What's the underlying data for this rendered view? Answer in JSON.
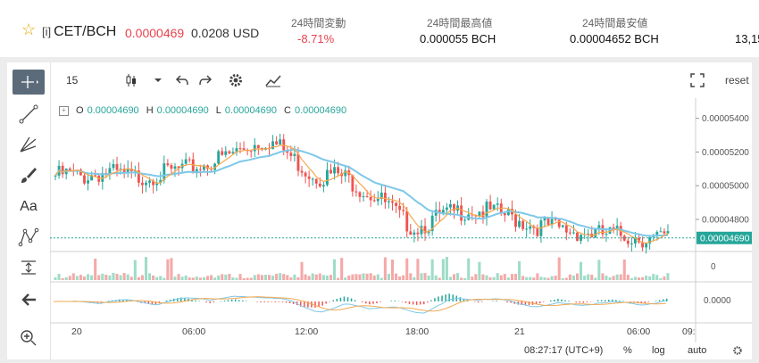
{
  "ticker": {
    "tag": "[i]",
    "pair": "CET/BCH",
    "price": "0.0000469",
    "usd": "0.0208 USD",
    "change_label": "24時間変動",
    "change_value": "-8.71%",
    "high_label": "24時間最高値",
    "high_value": "0.000055 BCH",
    "low_label": "24時間最安値",
    "low_value": "0.00004652 BCH",
    "volume_value": "13,15"
  },
  "toolbar": {
    "interval": "15",
    "reset_label": "reset"
  },
  "ohlc": {
    "o_label": "O",
    "o": "0.00004690",
    "h_label": "H",
    "h": "0.00004690",
    "l_label": "L",
    "l": "0.00004690",
    "c_label": "C",
    "c": "0.00004690"
  },
  "axis": {
    "price_labels": [
      "0.00005400",
      "0.00005200",
      "0.00005000",
      "0.00004800"
    ],
    "last_price": "0.00004690",
    "volume_zero": "0",
    "macd_zero": "0.0000",
    "time_labels": [
      "20",
      "06:00",
      "12:00",
      "18:00",
      "21",
      "06:00",
      "09:"
    ]
  },
  "bottom": {
    "clock": "08:27:17 (UTC+9)",
    "percent": "%",
    "log": "log",
    "auto": "auto"
  },
  "colors": {
    "up": "#26a69a",
    "down": "#ef5350",
    "ma_fast": "#f5a84f",
    "ma_slow": "#7ec8e8",
    "accent_red": "#e8424e"
  },
  "chart_data": {
    "type": "candlestick",
    "x_labels": [
      "20",
      "06:00",
      "12:00",
      "18:00",
      "21",
      "06:00",
      "09:"
    ],
    "y_ticks": [
      5.4e-05,
      5.2e-05,
      5e-05,
      4.8e-05
    ],
    "ylim": [
      4.62e-05,
      5.52e-05
    ],
    "last_price": 4.69e-05,
    "price_path": [
      5.06e-05,
      5.07e-05,
      5.05e-05,
      5.07e-05,
      5.08e-05,
      5.06e-05,
      5.05e-05,
      5.06e-05,
      5.07e-05,
      5.09e-05,
      5.1e-05,
      5.12e-05,
      5.15e-05,
      5.18e-05,
      5.22e-05,
      5.25e-05,
      5.27e-05,
      5.22e-05,
      5.15e-05,
      5.08e-05,
      5.05e-05,
      5.07e-05,
      5.04e-05,
      4.98e-05,
      4.94e-05,
      4.88e-05,
      4.8e-05,
      4.75e-05,
      4.78e-05,
      4.82e-05,
      4.84e-05,
      4.86e-05,
      4.85e-05,
      4.84e-05,
      4.82e-05,
      4.79e-05,
      4.76e-05,
      4.76e-05,
      4.74e-05,
      4.73e-05,
      4.72e-05,
      4.71e-05,
      4.71e-05,
      4.7e-05,
      4.69e-05,
      4.68e-05,
      4.69e-05
    ]
  }
}
